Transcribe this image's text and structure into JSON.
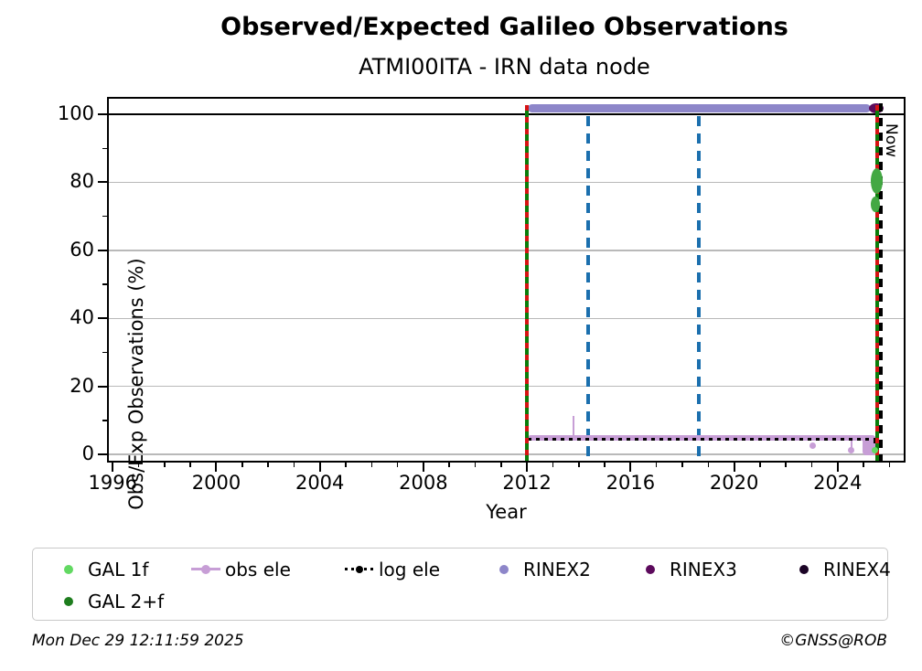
{
  "header": {
    "title": "Observed/Expected Galileo Observations",
    "subtitle": "ATMI00ITA - IRN data node"
  },
  "footer": {
    "timestamp": "Mon Dec 29 12:11:59 2025",
    "credit": "©GNSS@ROB"
  },
  "legend": {
    "items": [
      {
        "label": "GAL 1f",
        "marker": "dot",
        "color": "#62d962"
      },
      {
        "label": "obs ele",
        "marker": "line-dot",
        "color": "#c79ed6"
      },
      {
        "label": "log ele",
        "marker": "dotted-line-dot",
        "color": "#000000"
      },
      {
        "label": "RINEX2",
        "marker": "dot",
        "color": "#8d86c9"
      },
      {
        "label": "RINEX3",
        "marker": "dot",
        "color": "#5c0a5c"
      },
      {
        "label": "RINEX4",
        "marker": "dot",
        "color": "#1c0426"
      },
      {
        "label": "GAL 2+f",
        "marker": "dot",
        "color": "#1e7d1e"
      }
    ]
  },
  "chart_data": {
    "type": "line",
    "title": "Observed/Expected Galileo Observations",
    "subtitle": "ATMI00ITA - IRN data node",
    "xlabel": "Year",
    "ylabel": "Obs/Exp Observations (%)",
    "xlim": [
      1995.85,
      2026.55
    ],
    "ylim": [
      -1.9,
      104.6
    ],
    "x_major_ticks": [
      1996,
      2000,
      2004,
      2008,
      2012,
      2016,
      2020,
      2024
    ],
    "x_minor_step": 1,
    "y_major_ticks": [
      0,
      20,
      40,
      60,
      80,
      100
    ],
    "y_minor_ticks": [
      10,
      30,
      50,
      70,
      90
    ],
    "grid_y": [
      0,
      20,
      40,
      60,
      80
    ],
    "hline": {
      "y": 100,
      "color": "#000000"
    },
    "vlines": [
      {
        "name": "data-start",
        "x": 2012.0,
        "style": "green-red"
      },
      {
        "name": "event-1",
        "x": 2014.37,
        "style": "blue-dashed",
        "color": "#1b6fae"
      },
      {
        "name": "event-2",
        "x": 2018.62,
        "style": "blue-dashed",
        "color": "#1b6fae"
      },
      {
        "name": "data-end",
        "x": 2025.52,
        "style": "green-red"
      },
      {
        "name": "now",
        "x": 2025.66,
        "style": "black-dashed",
        "label": "Now"
      }
    ],
    "series": [
      {
        "name": "RINEX2",
        "type": "band",
        "color": "#8d86c9",
        "y": 101.7,
        "x_start": 2012.02,
        "x_end": 2025.28,
        "thickness": 9
      },
      {
        "name": "RINEX3",
        "type": "points",
        "color": "#5c0a5c",
        "marker_w": 16,
        "marker_h": 11,
        "points": [
          [
            2025.49,
            101.7
          ]
        ]
      },
      {
        "name": "RINEX4",
        "type": "points",
        "color": "#1c0426",
        "marker_w": 7,
        "marker_h": 7,
        "points": []
      },
      {
        "name": "obs ele",
        "type": "band",
        "color": "#c79ed6",
        "y": 4.7,
        "x_start": 2012.02,
        "x_end": 2025.45,
        "thickness": 6,
        "spikes": [
          {
            "x": 2013.8,
            "y_top": 11.3
          }
        ],
        "stems": [
          {
            "x": 2024.53,
            "y_bottom": 1.1
          }
        ],
        "points": [
          [
            2023.05,
            2.5
          ],
          [
            2024.53,
            1.1
          ]
        ],
        "cluster": {
          "x_start": 2024.95,
          "x_end": 2025.45,
          "y_top": 4.7,
          "y_bottom": 0.3
        }
      },
      {
        "name": "log ele",
        "type": "dotted",
        "color": "#000000",
        "y": 4.4,
        "x_start": 2012.02,
        "x_end": 2025.5,
        "end_drop": {
          "x": 2025.42,
          "y_bottom": 0.4
        }
      },
      {
        "name": "GAL 2+f",
        "type": "blobs",
        "color": "#43a843",
        "blobs": [
          {
            "x": 2025.5,
            "y": 80.3,
            "w": 13,
            "h": 28
          },
          {
            "x": 2025.47,
            "y": 73.6,
            "w": 10,
            "h": 17
          }
        ]
      },
      {
        "name": "GAL 1f",
        "type": "points",
        "color": "#62d962",
        "marker_w": 7,
        "marker_h": 7,
        "points": [
          [
            2025.42,
            1.3
          ]
        ]
      }
    ]
  }
}
